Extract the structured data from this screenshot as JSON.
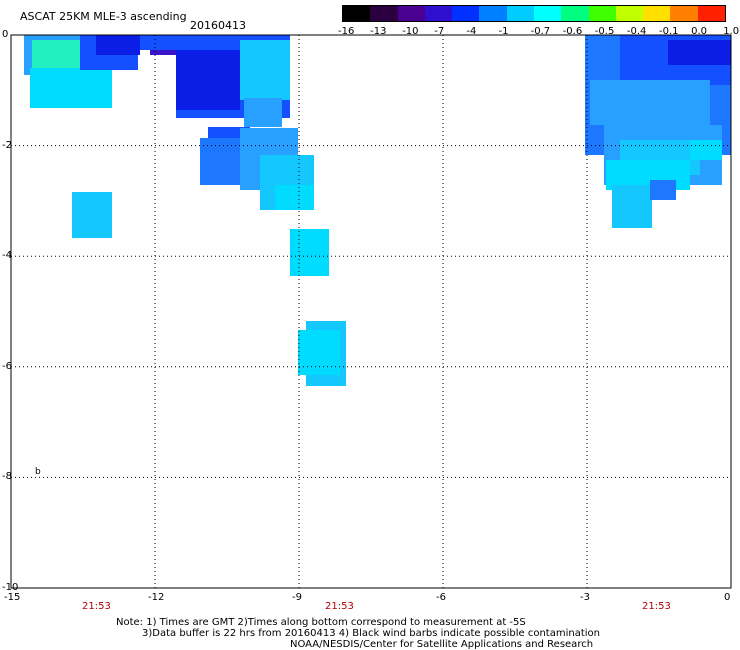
{
  "header": {
    "title": "ASCAT 25KM MLE-3 ascending",
    "date": "20160413"
  },
  "colorbar": {
    "labels": [
      "-16",
      "-13",
      "-10",
      "-7",
      "-4",
      "-1",
      "-0.7",
      "-0.6",
      "-0.5",
      "-0.4",
      "-0.1",
      "0.0",
      "1.0"
    ],
    "colors": [
      "#000000",
      "#2a0040",
      "#4a0090",
      "#3010d0",
      "#0030ff",
      "#0080ff",
      "#00ccff",
      "#00ffff",
      "#00ff80",
      "#40ff00",
      "#c0ff00",
      "#ffe000",
      "#ff8000",
      "#ff2000"
    ]
  },
  "axes": {
    "x_ticks": [
      "-15",
      "-12",
      "-9",
      "-6",
      "-3",
      "0"
    ],
    "y_ticks": [
      "0",
      "-2",
      "-4",
      "-6",
      "-8",
      "-10"
    ],
    "x_range": [
      -15,
      0
    ],
    "y_range": [
      -10,
      0
    ]
  },
  "times": [
    "21:53",
    "21:53",
    "21:53"
  ],
  "marker": "b",
  "notes": {
    "line1": "Note: 1) Times are GMT 2)Times along bottom correspond to measurement at -5S",
    "line2": "3)Data buffer is 22 hrs from 20160413 4) Black wind barbs indicate possible contamination",
    "line3": "NOAA/NESDIS/Center for Satellite Applications and Research"
  },
  "swath_colors": {
    "deep_blue": "#0a1ee6",
    "blue": "#1450ff",
    "mid_blue": "#1e78ff",
    "light_blue": "#28a0ff",
    "sky": "#14c8ff",
    "cyan": "#00dcff",
    "teal": "#22f0c0",
    "purple": "#3a14c8"
  }
}
